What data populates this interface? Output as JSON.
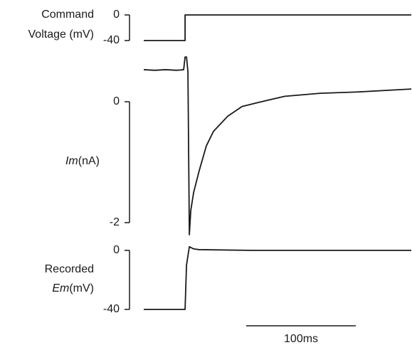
{
  "chart_data": [
    {
      "type": "line",
      "y_label": [
        "Command",
        "Voltage (mV)"
      ],
      "x": [
        0,
        37.7,
        37.7,
        244
      ],
      "series": [
        {
          "color": "#1a1a1a",
          "values": [
            -40,
            -40,
            0,
            0
          ]
        }
      ],
      "xlim": [
        0,
        244
      ],
      "ylim": [
        -40,
        0
      ],
      "yticks": [
        0,
        -40
      ]
    },
    {
      "type": "line",
      "y_label": [
        "Im",
        "(nA)"
      ],
      "x": [
        0,
        10,
        20,
        30,
        36.4,
        37.7,
        39,
        40.3,
        41.6,
        42.9,
        45.5,
        50.6,
        57.1,
        63.6,
        76.6,
        89.6,
        102.6,
        128.6,
        161,
        193.5,
        244
      ],
      "series": [
        {
          "color": "#1a1a1a",
          "values": [
            0.53,
            0.52,
            0.53,
            0.52,
            0.53,
            0.74,
            0.74,
            0.5,
            -2.2,
            -1.8,
            -1.5,
            -1.14,
            -0.73,
            -0.49,
            -0.24,
            -0.08,
            -0.02,
            0.09,
            0.14,
            0.16,
            0.21
          ]
        }
      ],
      "xlim": [
        0,
        244
      ],
      "ylim": [
        -2.2,
        0.75
      ],
      "yticks": [
        0,
        -2
      ]
    },
    {
      "type": "line",
      "y_label": [
        "Recorded",
        "Em",
        "(mV)"
      ],
      "x": [
        0,
        37.7,
        39,
        41.6,
        45.5,
        50.6,
        100,
        244
      ],
      "series": [
        {
          "color": "#1a1a1a",
          "values": [
            -40,
            -40,
            -10,
            2.5,
            1,
            0.5,
            0,
            0
          ]
        }
      ],
      "xlim": [
        0,
        244
      ],
      "ylim": [
        -40,
        2.5
      ],
      "yticks": [
        0,
        -40
      ],
      "scale_bar": {
        "value": 100,
        "label": "100ms"
      }
    }
  ]
}
